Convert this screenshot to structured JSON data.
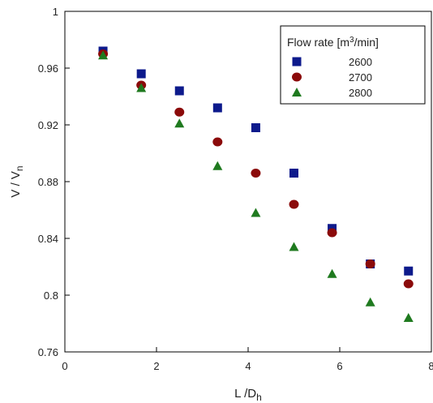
{
  "chart_data": {
    "type": "scatter",
    "title": "",
    "xlabel": "L /D",
    "xlabel_sub": "h",
    "ylabel": "V / V",
    "ylabel_sub": "n",
    "xlim": [
      0,
      8
    ],
    "ylim": [
      0.76,
      1.0
    ],
    "xticks": [
      "0",
      "2",
      "4",
      "6",
      "8"
    ],
    "yticks": [
      "0.76",
      "0.8",
      "0.84",
      "0.88",
      "0.92",
      "0.96",
      "1"
    ],
    "grid": false,
    "legend": {
      "title": "Flow rate [m",
      "title_sup": "3",
      "title_suffix": "/min]",
      "placement": "top-right"
    },
    "x": [
      0.833,
      1.667,
      2.5,
      3.333,
      4.167,
      5.0,
      5.833,
      6.667,
      7.5
    ],
    "series": [
      {
        "name": "2600",
        "marker": "square",
        "color": "#0d1a8c",
        "values": [
          0.972,
          0.956,
          0.944,
          0.932,
          0.918,
          0.886,
          0.847,
          0.822,
          0.817
        ]
      },
      {
        "name": "2700",
        "marker": "circle",
        "color": "#8b0a0a",
        "values": [
          0.97,
          0.948,
          0.929,
          0.908,
          0.886,
          0.864,
          0.844,
          0.822,
          0.808
        ]
      },
      {
        "name": "2800",
        "marker": "triangle",
        "color": "#1f7a1f",
        "values": [
          0.969,
          0.946,
          0.921,
          0.891,
          0.858,
          0.834,
          0.815,
          0.795,
          0.784
        ]
      }
    ]
  }
}
